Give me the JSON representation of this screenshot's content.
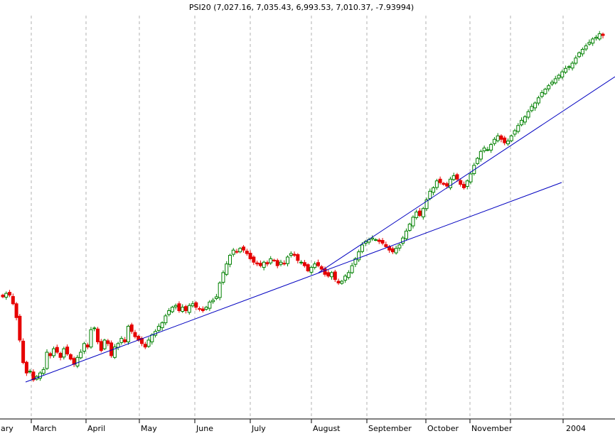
{
  "chart_data": {
    "type": "candlestick",
    "title": "PSI20 (7,027.16, 7,035.43, 6,993.53, 7,010.37, -7.93994)",
    "series_name": "PSI20",
    "last_bar": {
      "open": 7027.16,
      "high": 7035.43,
      "low": 6993.53,
      "close": 7010.37,
      "change": -7.93994
    },
    "x_ticks": [
      "ary",
      "March",
      "April",
      "May",
      "June",
      "July",
      "August",
      "September",
      "October",
      "November",
      "2004"
    ],
    "grid": "vertical-dashed",
    "up_color": "#008000",
    "down_color": "#e60000",
    "trendline_color": "#0000c0",
    "approx_closes": [
      5500,
      5520,
      5510,
      5460,
      5380,
      5250,
      5120,
      5060,
      5070,
      5020,
      5040,
      5060,
      5080,
      5180,
      5160,
      5200,
      5180,
      5150,
      5200,
      5170,
      5140,
      5110,
      5150,
      5180,
      5230,
      5210,
      5310,
      5320,
      5240,
      5190,
      5250,
      5230,
      5160,
      5210,
      5230,
      5260,
      5240,
      5330,
      5300,
      5270,
      5250,
      5230,
      5210,
      5250,
      5280,
      5300,
      5330,
      5350,
      5390,
      5420,
      5440,
      5450,
      5420,
      5440,
      5420,
      5450,
      5460,
      5440,
      5430,
      5420,
      5440,
      5470,
      5480,
      5500,
      5580,
      5640,
      5690,
      5740,
      5770,
      5760,
      5780,
      5770,
      5750,
      5720,
      5700,
      5690,
      5680,
      5700,
      5690,
      5720,
      5710,
      5680,
      5700,
      5690,
      5730,
      5750,
      5740,
      5710,
      5700,
      5680,
      5650,
      5670,
      5690,
      5680,
      5660,
      5630,
      5620,
      5640,
      5600,
      5580,
      5590,
      5620,
      5640,
      5680,
      5720,
      5760,
      5800,
      5820,
      5830,
      5840,
      5830,
      5820,
      5810,
      5790,
      5770,
      5760,
      5780,
      5800,
      5840,
      5880,
      5920,
      5960,
      5990,
      5970,
      6010,
      6060,
      6110,
      6130,
      6170,
      6160,
      6150,
      6140,
      6180,
      6200,
      6180,
      6150,
      6130,
      6170,
      6210,
      6260,
      6300,
      6340,
      6360,
      6350,
      6380,
      6410,
      6430,
      6410,
      6390,
      6400,
      6430,
      6460,
      6490,
      6520,
      6540,
      6570,
      6600,
      6620,
      6650,
      6680,
      6700,
      6720,
      6740,
      6760,
      6780,
      6800,
      6820,
      6830,
      6850,
      6880,
      6910,
      6930,
      6950,
      6970,
      6990,
      7000,
      7020,
      7010
    ]
  }
}
